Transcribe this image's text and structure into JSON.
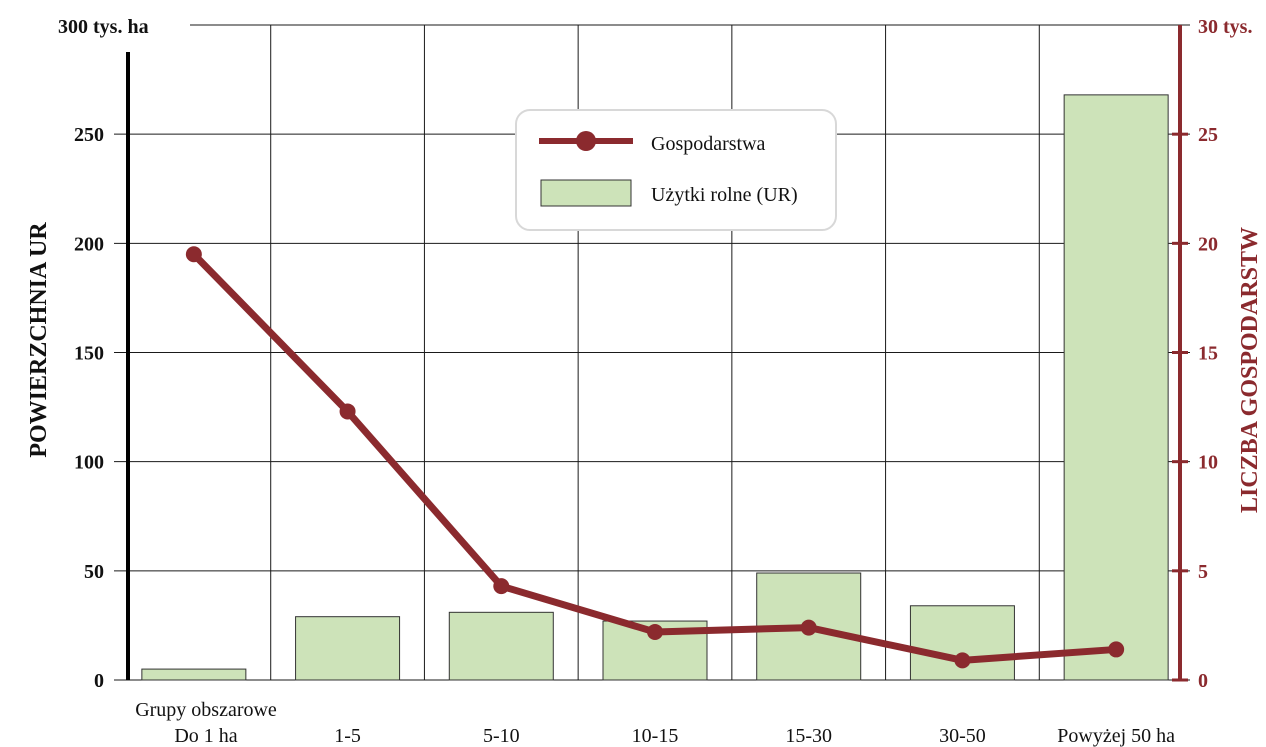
{
  "colors": {
    "bar_fill": "#cde3b9",
    "bar_stroke": "#333333",
    "line": "#8b2a2e",
    "grid": "#1a1a1a",
    "left_axis": "#000000",
    "right_axis": "#8b2a2e"
  },
  "chart_data": {
    "type": "bar+line",
    "x_group_label": "Grupy obszarowe",
    "categories": [
      "Do 1 ha",
      "1-5",
      "5-10",
      "10-15",
      "15-30",
      "30-50",
      "Powyżej 50 ha"
    ],
    "series": [
      {
        "name": "Użytki rolne (UR)",
        "type": "bar",
        "axis": "left",
        "values": [
          5,
          29,
          31,
          27,
          49,
          34,
          268
        ]
      },
      {
        "name": "Gospodarstwa",
        "type": "line",
        "axis": "right",
        "values": [
          19.5,
          12.3,
          4.3,
          2.2,
          2.4,
          0.9,
          1.4
        ]
      }
    ],
    "left_axis": {
      "label": "POWIERZCHNIA UR",
      "top_label": "300 tys. ha",
      "ylim": [
        0,
        300
      ],
      "ticks": [
        "0",
        "50",
        "100",
        "150",
        "200",
        "250"
      ]
    },
    "right_axis": {
      "label": "LICZBA GOSPODARSTW",
      "top_label": "30 tys.",
      "ylim": [
        0,
        30
      ],
      "ticks": [
        "0",
        "5",
        "10",
        "15",
        "20",
        "25"
      ]
    },
    "grid": true,
    "legend_position": "top-center"
  }
}
